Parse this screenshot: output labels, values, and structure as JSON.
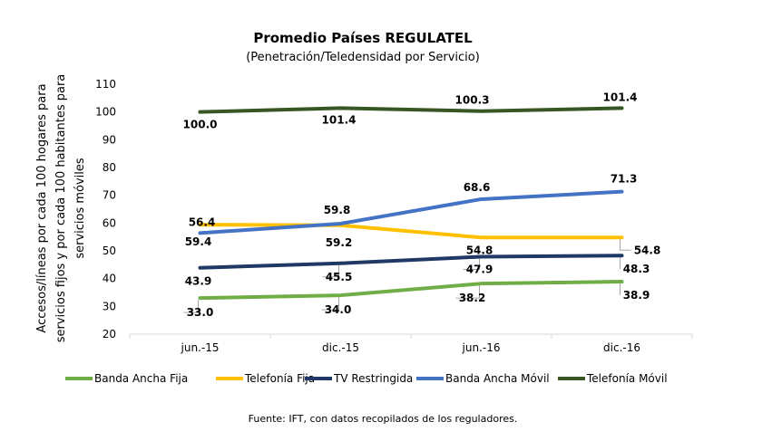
{
  "chart_data": {
    "type": "line",
    "title": "Promedio Países REGULATEL",
    "subtitle": "(Penetración/Teledensidad por Servicio)",
    "ylabel_line1": "Accesos/líneas por cada 100 hogares para",
    "ylabel_line2": "servicios fijos y por cada 100 habitantes para",
    "ylabel_line3": "servicios móviles",
    "source": "Fuente: IFT, con datos recopilados de los reguladores.",
    "categories": [
      "jun.-15",
      "dic.-15",
      "jun.-16",
      "dic.-16"
    ],
    "ylim": [
      20,
      110
    ],
    "yticks": [
      20,
      30,
      40,
      50,
      60,
      70,
      80,
      90,
      100,
      110
    ],
    "grid": false,
    "legend_position": "bottom",
    "series": [
      {
        "name": "Banda Ancha Fija",
        "color": "#70AD47",
        "values": [
          33.0,
          34.0,
          38.2,
          38.9
        ],
        "labels": [
          "33.0",
          "34.0",
          "38.2",
          "38.9"
        ]
      },
      {
        "name": "Telefonía Fija",
        "color": "#FFC000",
        "values": [
          59.4,
          59.2,
          54.8,
          54.8
        ],
        "labels": [
          "59.4",
          "59.2",
          "54.8",
          "54.8"
        ]
      },
      {
        "name": "TV Restringida",
        "color": "#203864",
        "values": [
          43.9,
          45.5,
          47.9,
          48.3
        ],
        "labels": [
          "43.9",
          "45.5",
          "47.9",
          "48.3"
        ]
      },
      {
        "name": "Banda Ancha Móvil",
        "color": "#4472C4",
        "values": [
          56.4,
          59.8,
          68.6,
          71.3
        ],
        "labels": [
          "56.4",
          "59.8",
          "68.6",
          "71.3"
        ]
      },
      {
        "name": "Telefonía Móvil",
        "color": "#375623",
        "values": [
          100.0,
          101.4,
          100.3,
          101.4
        ],
        "labels": [
          "100.0",
          "101.4",
          "100.3",
          "101.4"
        ]
      }
    ]
  }
}
